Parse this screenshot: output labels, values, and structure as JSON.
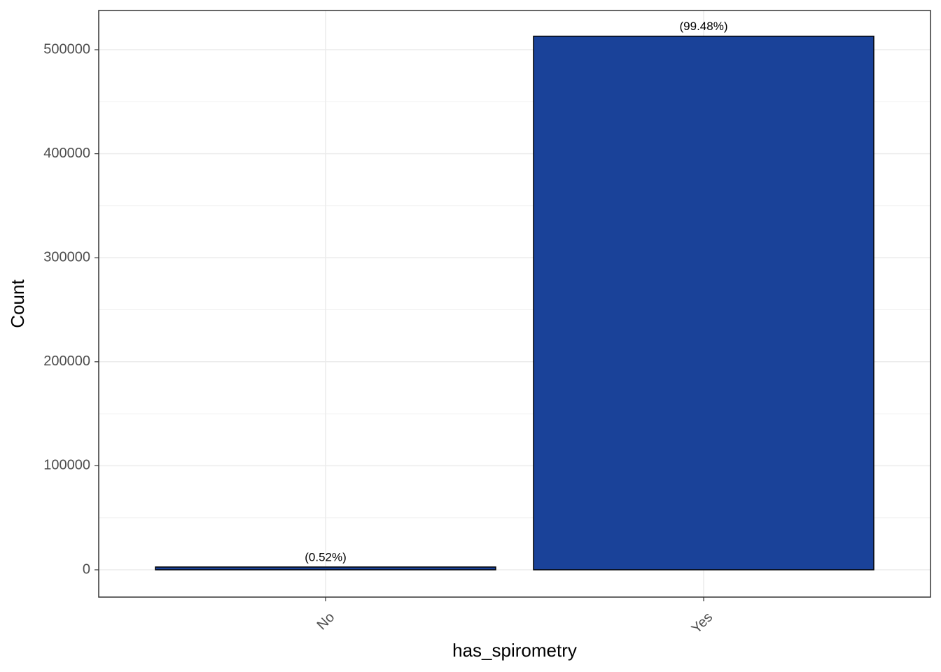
{
  "chart_data": {
    "type": "bar",
    "x_label": "has_spirometry",
    "y_label": "Count",
    "categories": [
      "No",
      "Yes"
    ],
    "values": [
      2680,
      513000
    ],
    "annotations": [
      "(0.52%)",
      "(99.48%)"
    ],
    "color": "#1a4299",
    "ylim": [
      -26245,
      537700
    ],
    "yticks": [
      0,
      100000,
      200000,
      300000,
      400000,
      500000
    ],
    "grid": true
  }
}
